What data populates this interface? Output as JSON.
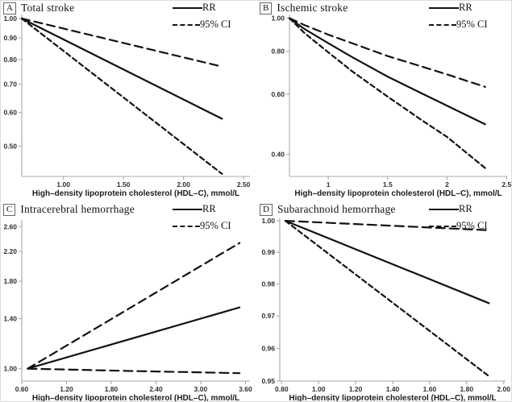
{
  "figure": {
    "background": "#ffffff",
    "axis_color": "#a8a8a8",
    "line_color": "#121212",
    "xlabel_shared": "High–density lipoprotein cholesterol (HDL–C), mmol/L"
  },
  "chart_data": [
    {
      "type": "line",
      "panel_label": "A",
      "title": "Total stroke",
      "xlabel": "High–density lipoprotein cholesterol (HDL–C), mmol/L",
      "ylabel": "",
      "yscale": "log",
      "grid": false,
      "legend_position": "top-right",
      "legend": {
        "rr": "RR",
        "ci": "95% CI"
      },
      "xlim": [
        0.653,
        2.553
      ],
      "ylim": [
        0.424,
        1.022
      ],
      "xticks": [
        1.0,
        1.5,
        2.0,
        2.5
      ],
      "xtick_labels": [
        "1.00",
        "1.50",
        "2.00",
        "2.50"
      ],
      "yticks": [
        0.5,
        0.6,
        0.7,
        0.8,
        0.9,
        1.0
      ],
      "ytick_labels": [
        "0.50",
        "0.60",
        "0.70",
        "0.80",
        "0.90",
        "1.00"
      ],
      "series": [
        {
          "name": "RR",
          "style": "solid",
          "dash": "",
          "x": [
            0.653,
            2.32
          ],
          "y": [
            1.0,
            0.58
          ]
        },
        {
          "name": "95% CI upper",
          "style": "dashed",
          "dash": "10,6",
          "x": [
            0.653,
            2.32
          ],
          "y": [
            1.0,
            0.77
          ]
        },
        {
          "name": "95% CI lower",
          "style": "dashed",
          "dash": "6,4",
          "x": [
            0.653,
            2.32
          ],
          "y": [
            1.0,
            0.43
          ]
        }
      ]
    },
    {
      "type": "line",
      "panel_label": "B",
      "title": "Ischemic stroke",
      "xlabel": "High–density lipoprotein cholesterol (HDL–C), mmol/L",
      "ylabel": "",
      "yscale": "log",
      "grid": false,
      "legend_position": "top-right",
      "legend": {
        "rr": "RR",
        "ci": "95% CI"
      },
      "xlim": [
        0.674,
        2.505
      ],
      "ylim": [
        0.345,
        1.025
      ],
      "xticks": [
        1,
        1.5,
        2,
        2.5
      ],
      "xtick_labels": [
        "1",
        "1.5",
        "2",
        "2.5"
      ],
      "yticks": [
        0.4,
        0.6,
        0.8,
        1.0
      ],
      "ytick_labels": [
        "0.40",
        "0.60",
        "0.80",
        "1.00"
      ],
      "series": [
        {
          "name": "RR",
          "style": "solid",
          "dash": "",
          "x": [
            0.674,
            0.8,
            1.0,
            1.2,
            1.5,
            1.8,
            2.0,
            2.32
          ],
          "y": [
            1.0,
            0.93,
            0.845,
            0.77,
            0.675,
            0.6,
            0.555,
            0.49
          ]
        },
        {
          "name": "95% CI upper",
          "style": "dashed",
          "dash": "10,6",
          "x": [
            0.674,
            0.8,
            1.0,
            1.2,
            1.5,
            1.8,
            2.0,
            2.32
          ],
          "y": [
            1.0,
            0.955,
            0.895,
            0.845,
            0.775,
            0.72,
            0.685,
            0.63
          ]
        },
        {
          "name": "95% CI lower",
          "style": "dashed",
          "dash": "6,4",
          "x": [
            0.674,
            0.8,
            1.0,
            1.2,
            1.5,
            1.8,
            2.0,
            2.32
          ],
          "y": [
            1.0,
            0.905,
            0.795,
            0.7,
            0.59,
            0.5,
            0.45,
            0.365
          ]
        }
      ]
    },
    {
      "type": "line",
      "panel_label": "C",
      "title": "Intracerebral hemorrhage",
      "xlabel": "High–density lipoprotein cholesterol (HDL–C), mmol/L",
      "ylabel": "",
      "yscale": "log",
      "grid": false,
      "legend_position": "top-right",
      "legend": {
        "rr": "RR",
        "ci": "95% CI"
      },
      "xlim": [
        0.6,
        3.66
      ],
      "ylim": [
        0.92,
        2.72
      ],
      "xticks": [
        0.6,
        1.2,
        1.8,
        2.4,
        3.0,
        3.6
      ],
      "xtick_labels": [
        "0.60",
        "1.20",
        "1.80",
        "2.40",
        "3.00",
        "3.60"
      ],
      "yticks": [
        1.0,
        1.4,
        1.8,
        2.2,
        2.6
      ],
      "ytick_labels": [
        "1.00",
        "1.40",
        "1.80",
        "2.20",
        "2.60"
      ],
      "series": [
        {
          "name": "RR",
          "style": "solid",
          "dash": "",
          "x": [
            0.68,
            3.52
          ],
          "y": [
            1.0,
            1.51
          ]
        },
        {
          "name": "95% CI upper",
          "style": "dashed",
          "dash": "10,6",
          "x": [
            0.68,
            3.52
          ],
          "y": [
            1.0,
            2.33
          ]
        },
        {
          "name": "95% CI lower",
          "style": "dashed",
          "dash": "11,6",
          "x": [
            0.68,
            2.0,
            3.52
          ],
          "y": [
            1.0,
            0.985,
            0.97
          ]
        }
      ]
    },
    {
      "type": "line",
      "panel_label": "D",
      "title": "Subarachnoid hemorrhage",
      "xlabel": "High–density lipoprotein cholesterol (HDL–C), mmol/L",
      "ylabel": "",
      "yscale": "log",
      "grid": false,
      "legend_position": "top-right",
      "legend": {
        "rr": "RR",
        "ci": "95% CI"
      },
      "xlim": [
        0.79,
        2.01
      ],
      "ylim": [
        0.95,
        1.0008
      ],
      "xticks": [
        0.8,
        1.0,
        1.2,
        1.4,
        1.6,
        1.8,
        2.0
      ],
      "xtick_labels": [
        "0.80",
        "1.00",
        "1.20",
        "1.40",
        "1.60",
        "1.80",
        "2.00"
      ],
      "yticks": [
        0.95,
        0.96,
        0.97,
        0.98,
        0.99,
        1.0
      ],
      "ytick_labels": [
        "0.95",
        "0.96",
        "0.97",
        "0.98",
        "0.99",
        "1.00"
      ],
      "series": [
        {
          "name": "RR",
          "style": "solid",
          "dash": "",
          "x": [
            0.82,
            1.92
          ],
          "y": [
            1.0,
            0.974
          ]
        },
        {
          "name": "95% CI upper",
          "style": "dashed",
          "dash": "11,6",
          "x": [
            0.82,
            1.92
          ],
          "y": [
            1.0,
            0.997
          ]
        },
        {
          "name": "95% CI lower",
          "style": "dashed",
          "dash": "6,4",
          "x": [
            0.82,
            1.92
          ],
          "y": [
            1.0,
            0.9515
          ]
        }
      ]
    }
  ]
}
